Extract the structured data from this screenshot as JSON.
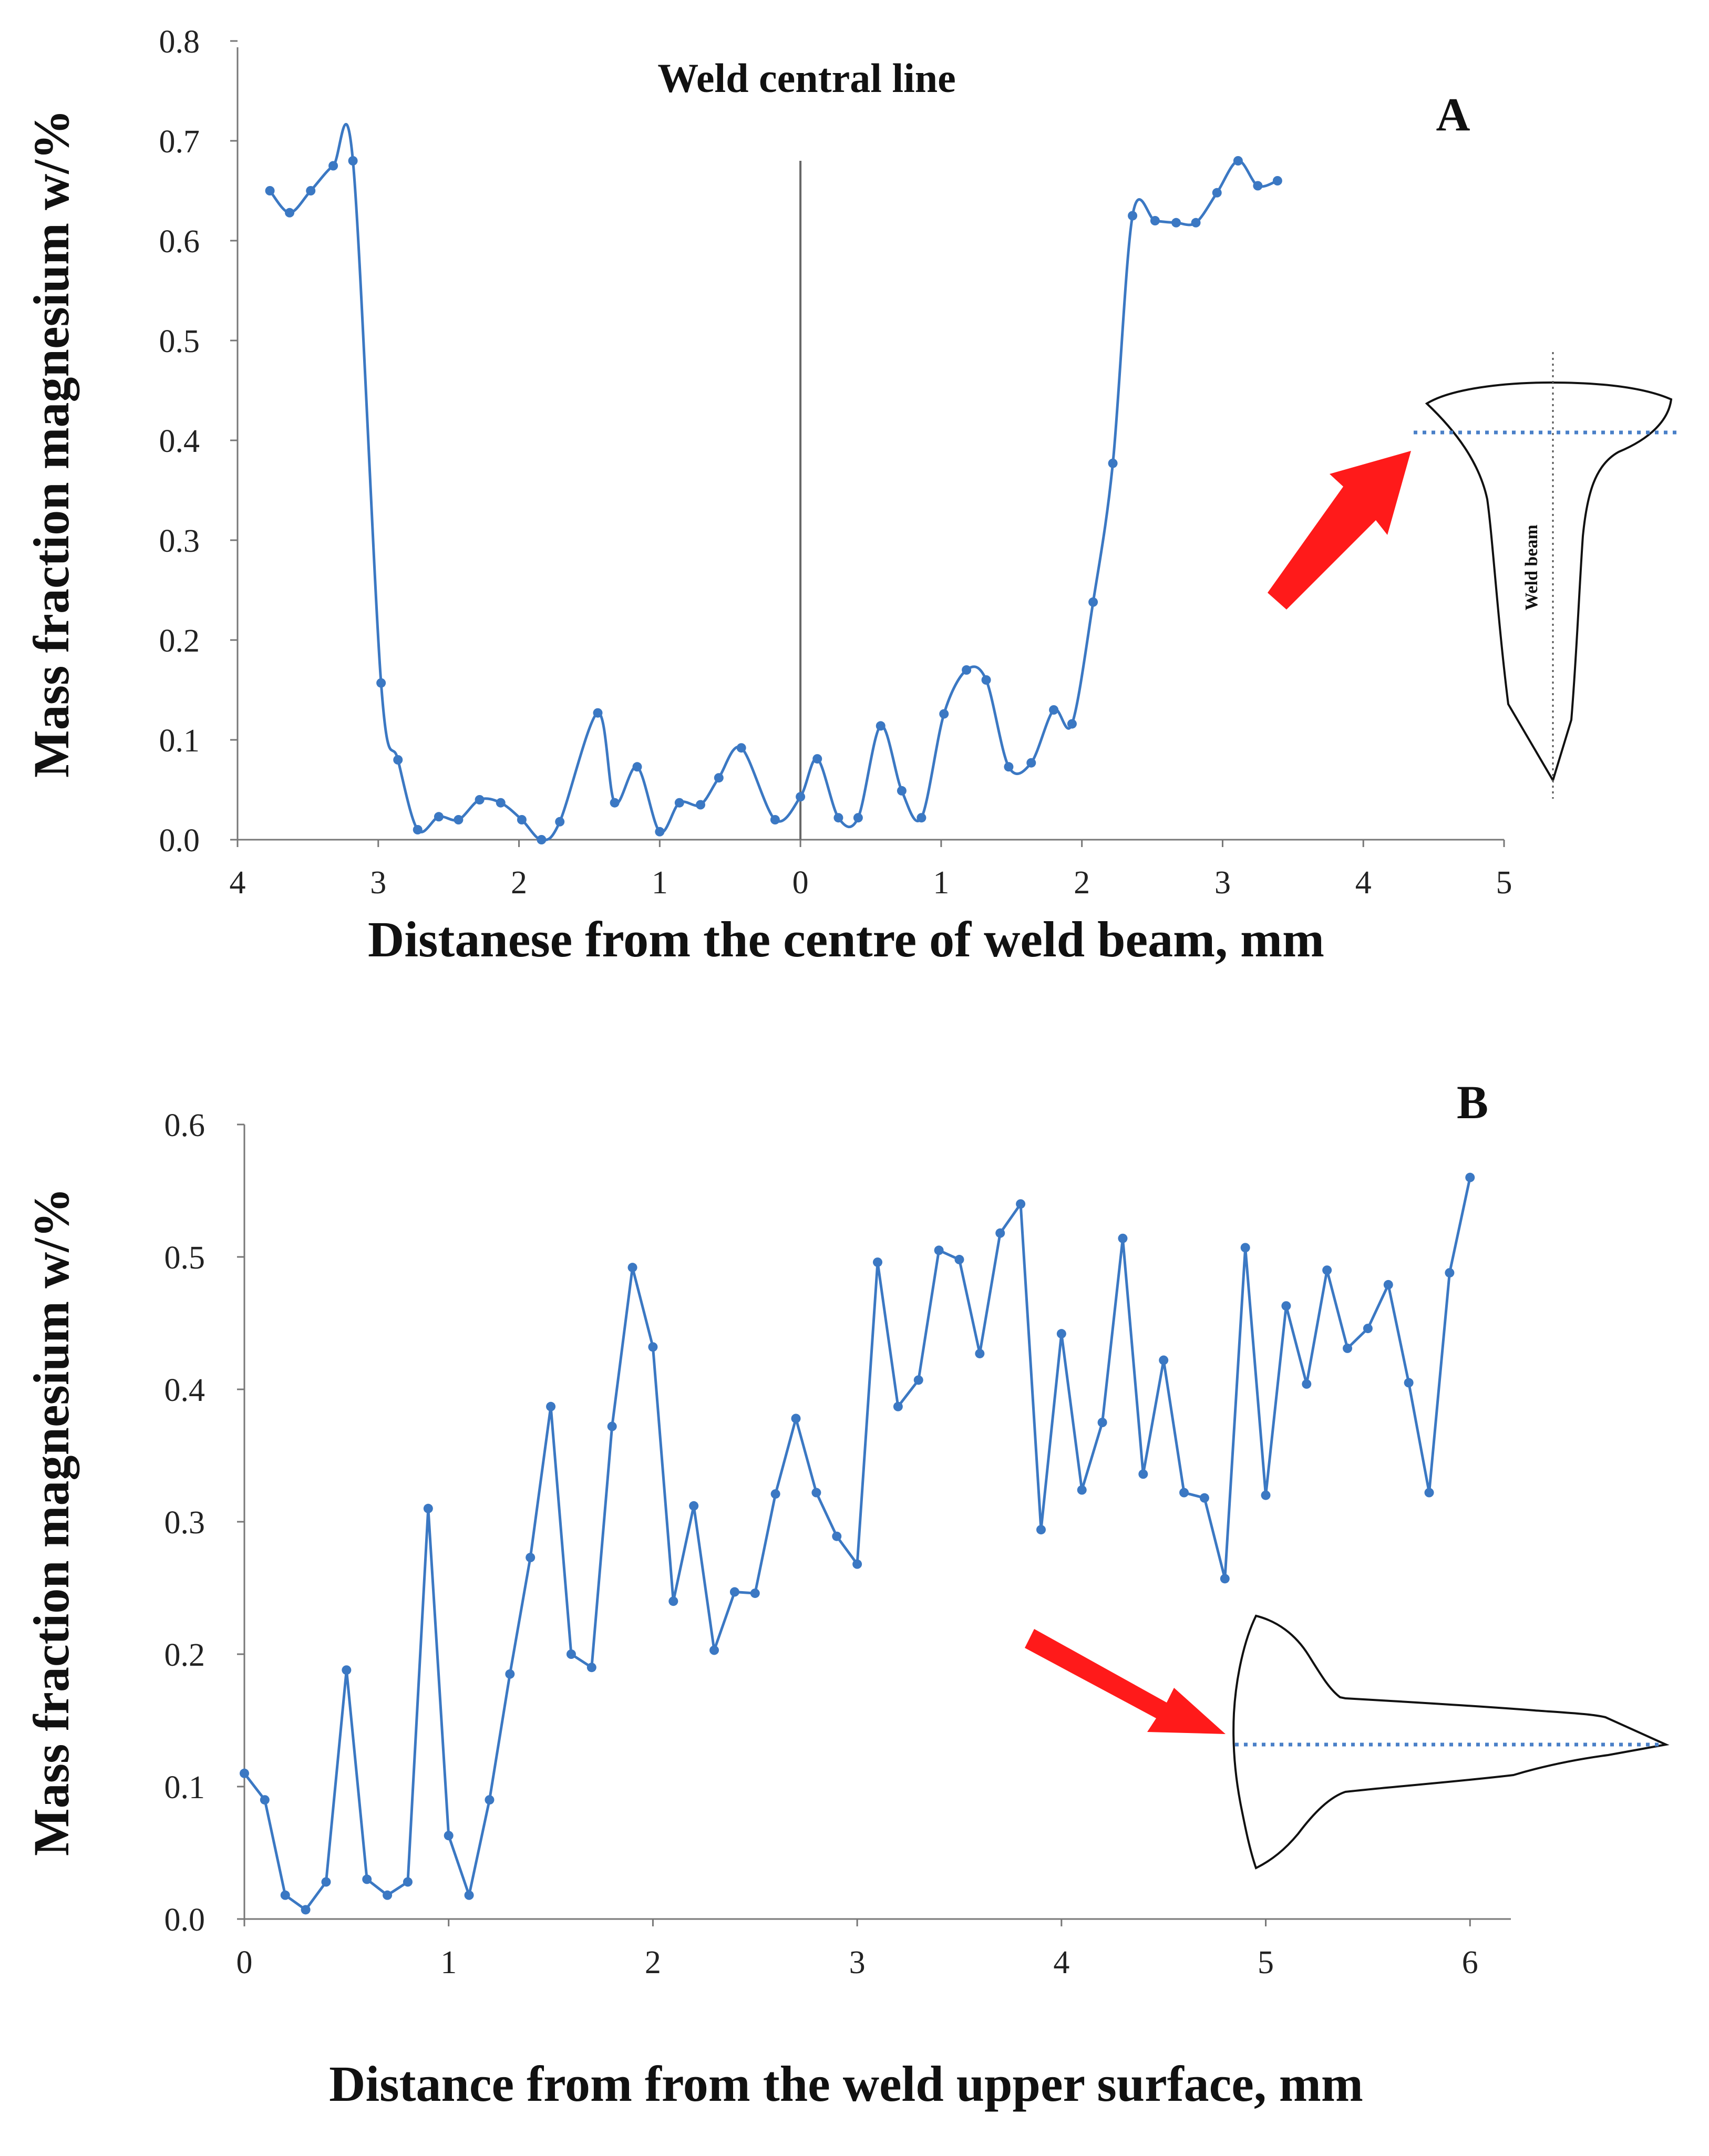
{
  "chart_data": [
    {
      "type": "line",
      "panel_label": "A",
      "annotation": "Weld central line",
      "inset_label": "Weld beam",
      "xlabel": "Distanese from the centre of  weld beam, mm",
      "ylabel": "Mass fraction magnesium w/%",
      "ylim": [
        0,
        0.8
      ],
      "xlim": [
        -4,
        5
      ],
      "x_tick_labels": [
        "4",
        "3",
        "2",
        "1",
        "0",
        "1",
        "2",
        "3",
        "4",
        "5"
      ],
      "y_tick_labels": [
        "0.0",
        "0.1",
        "0.2",
        "0.3",
        "0.4",
        "0.5",
        "0.6",
        "0.7",
        "0.8"
      ],
      "central_line_x": 0,
      "series": [
        {
          "name": "Mg",
          "color": "#3b78c3",
          "x": [
            -3.77,
            -3.63,
            -3.48,
            -3.32,
            -3.18,
            -2.98,
            -2.86,
            -2.72,
            -2.57,
            -2.43,
            -2.28,
            -2.13,
            -1.98,
            -1.84,
            -1.71,
            -1.44,
            -1.32,
            -1.16,
            -1.0,
            -0.86,
            -0.71,
            -0.58,
            -0.42,
            -0.18,
            0.0,
            0.12,
            0.27,
            0.41,
            0.57,
            0.72,
            0.86,
            1.02,
            1.18,
            1.32,
            1.48,
            1.64,
            1.8,
            1.93,
            2.08,
            2.22,
            2.36,
            2.52,
            2.67,
            2.81,
            2.96,
            3.11,
            3.25,
            3.39
          ],
          "y": [
            0.65,
            0.628,
            0.65,
            0.675,
            0.68,
            0.157,
            0.08,
            0.01,
            0.023,
            0.02,
            0.04,
            0.037,
            0.02,
            0.0,
            0.018,
            0.127,
            0.037,
            0.073,
            0.008,
            0.037,
            0.035,
            0.062,
            0.092,
            0.02,
            0.043,
            0.081,
            0.022,
            0.022,
            0.114,
            0.049,
            0.022,
            0.126,
            0.17,
            0.16,
            0.073,
            0.077,
            0.13,
            0.116,
            0.238,
            0.377,
            0.625,
            0.62,
            0.618,
            0.618,
            0.648,
            0.68,
            0.655,
            0.66
          ]
        }
      ]
    },
    {
      "type": "line",
      "panel_label": "B",
      "xlabel": "Distance from from the weld upper surface, mm",
      "ylabel": "Mass fraction magnesium w/%",
      "ylim": [
        0,
        0.6
      ],
      "xlim": [
        0,
        6.2
      ],
      "x_tick_labels": [
        "0",
        "1",
        "2",
        "3",
        "4",
        "5",
        "6"
      ],
      "y_tick_labels": [
        "0.0",
        "0.1",
        "0.2",
        "0.3",
        "0.4",
        "0.5",
        "0.6"
      ],
      "series": [
        {
          "name": "Mg",
          "color": "#3b78c3",
          "x": [
            0.0,
            0.1,
            0.2,
            0.3,
            0.4,
            0.5,
            0.6,
            0.7,
            0.8,
            0.9,
            1.0,
            1.1,
            1.2,
            1.3,
            1.4,
            1.5,
            1.6,
            1.7,
            1.8,
            1.9,
            2.0,
            2.1,
            2.2,
            2.3,
            2.4,
            2.5,
            2.6,
            2.7,
            2.8,
            2.9,
            3.0,
            3.1,
            3.2,
            3.3,
            3.4,
            3.5,
            3.6,
            3.7,
            3.8,
            3.9,
            4.0,
            4.1,
            4.2,
            4.3,
            4.4,
            4.5,
            4.6,
            4.7,
            4.8,
            4.9,
            5.0,
            5.1,
            5.2,
            5.3,
            5.4,
            5.5,
            5.6,
            5.7,
            5.8,
            5.9,
            6.0
          ],
          "y": [
            0.11,
            0.09,
            0.018,
            0.007,
            0.028,
            0.188,
            0.03,
            0.018,
            0.028,
            0.31,
            0.063,
            0.018,
            0.09,
            0.185,
            0.273,
            0.387,
            0.2,
            0.19,
            0.372,
            0.492,
            0.432,
            0.24,
            0.312,
            0.203,
            0.247,
            0.246,
            0.321,
            0.378,
            0.322,
            0.289,
            0.268,
            0.496,
            0.387,
            0.407,
            0.505,
            0.498,
            0.427,
            0.518,
            0.54,
            0.294,
            0.442,
            0.324,
            0.375,
            0.514,
            0.336,
            0.422,
            0.322,
            0.318,
            0.257,
            0.507,
            0.32,
            0.463,
            0.404,
            0.49,
            0.431,
            0.446,
            0.479,
            0.405,
            0.322,
            0.488,
            0.56
          ]
        }
      ]
    }
  ]
}
